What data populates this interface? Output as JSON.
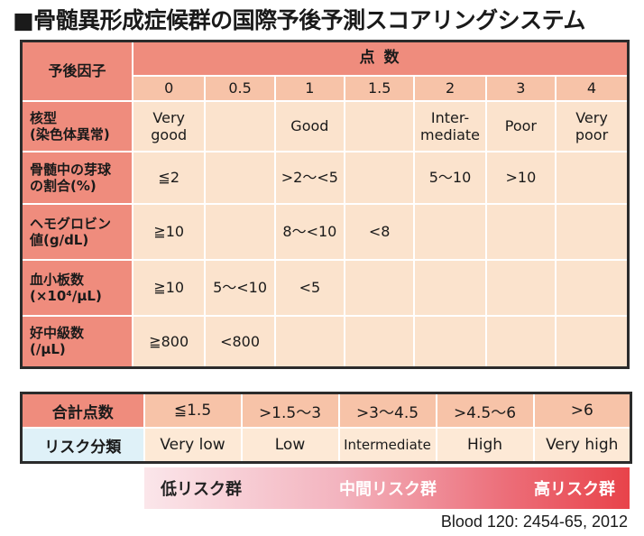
{
  "title": "■骨髄異形成症候群の国際予後予測スコアリングシステム",
  "main_table": {
    "factor_header": "予後因子",
    "score_header": "点 数",
    "points": [
      "0",
      "0.5",
      "1",
      "1.5",
      "2",
      "3",
      "4"
    ],
    "rows": [
      {
        "label": "核型\n(染色体異常)",
        "cells": [
          "Very\ngood",
          "",
          "Good",
          "",
          "Inter-\nmediate",
          "Poor",
          "Very\npoor"
        ]
      },
      {
        "label": "骨髄中の芽球\nの割合(%)",
        "cells": [
          "≦2",
          "",
          ">2〜<5",
          "",
          "5〜10",
          ">10",
          ""
        ]
      },
      {
        "label": "ヘモグロビン\n値(g/dL)",
        "cells": [
          "≧10",
          "",
          "8〜<10",
          "<8",
          "",
          "",
          ""
        ]
      },
      {
        "label": "血小板数\n(×10⁴/μL)",
        "cells": [
          "≧10",
          "5〜<10",
          "<5",
          "",
          "",
          "",
          ""
        ]
      },
      {
        "label": "好中級数\n(/μL)",
        "cells": [
          "≧800",
          "<800",
          "",
          "",
          "",
          "",
          ""
        ]
      }
    ]
  },
  "total_table": {
    "total_label": "合計点数",
    "totals": [
      "≦1.5",
      ">1.5〜3",
      ">3〜4.5",
      ">4.5〜6",
      ">6"
    ],
    "risk_label": "リスク分類",
    "risks": [
      "Very low",
      "Low",
      "Intermediate",
      "High",
      "Very high"
    ]
  },
  "risk_bar": {
    "low": "低リスク群",
    "mid": "中間リスク群",
    "high": "高リスク群"
  },
  "source": "Blood 120: 2454-65, 2012"
}
